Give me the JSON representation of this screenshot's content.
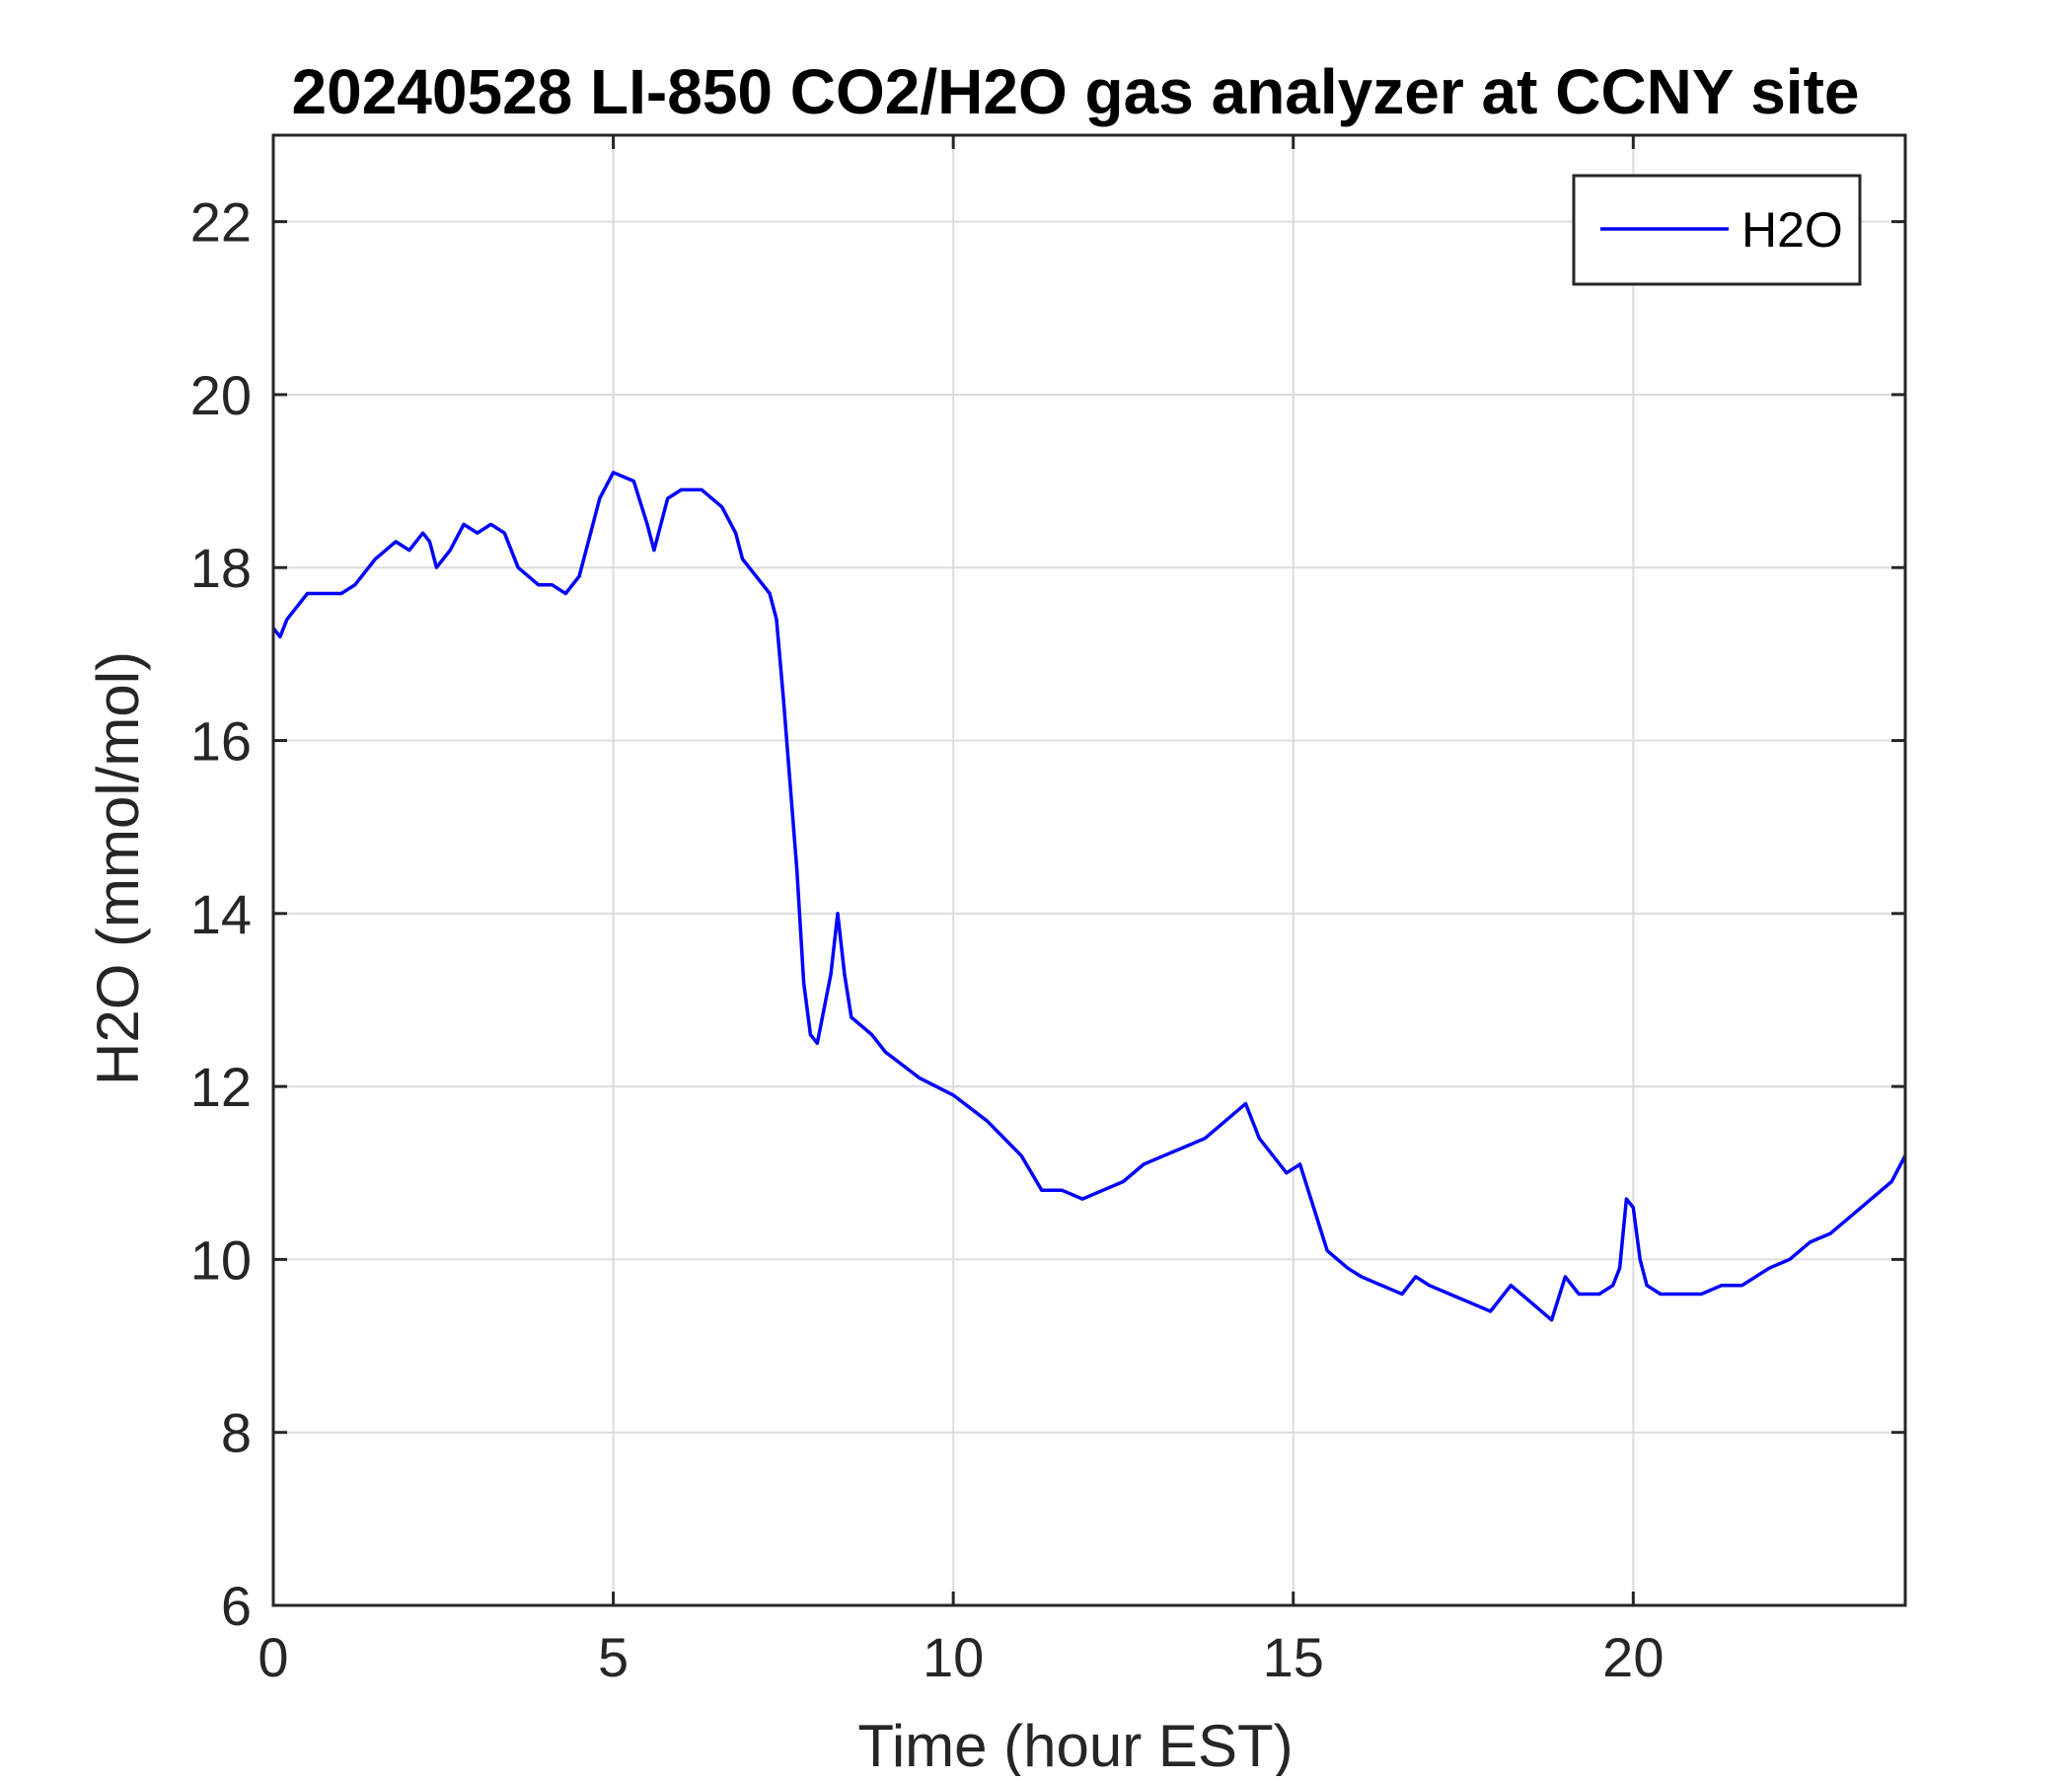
{
  "chart_data": {
    "type": "line",
    "title": "20240528 LI-850 CO2/H2O gas analyzer at CCNY site",
    "xlabel": "Time (hour EST)",
    "ylabel": "H2O (mmol/mol)",
    "xlim": [
      0,
      24
    ],
    "ylim": [
      6,
      23
    ],
    "xticks": [
      0,
      5,
      10,
      15,
      20
    ],
    "yticks": [
      6,
      8,
      10,
      12,
      14,
      16,
      18,
      20,
      22
    ],
    "grid": true,
    "legend_position": "top-right",
    "series": [
      {
        "name": "H2O",
        "color": "#0000ff",
        "x": [
          0,
          0.1,
          0.2,
          0.3,
          0.5,
          0.7,
          1.0,
          1.2,
          1.5,
          1.8,
          2.0,
          2.2,
          2.3,
          2.4,
          2.6,
          2.8,
          3.0,
          3.2,
          3.4,
          3.6,
          3.9,
          4.1,
          4.3,
          4.5,
          4.8,
          5.0,
          5.3,
          5.5,
          5.6,
          5.8,
          6.0,
          6.3,
          6.6,
          6.8,
          6.9,
          7.1,
          7.3,
          7.4,
          7.5,
          7.6,
          7.7,
          7.8,
          7.9,
          8.0,
          8.2,
          8.3,
          8.4,
          8.5,
          8.8,
          9.0,
          9.5,
          10.0,
          10.5,
          11.0,
          11.3,
          11.6,
          11.9,
          12.2,
          12.5,
          12.8,
          13.1,
          13.4,
          13.7,
          14.0,
          14.3,
          14.5,
          14.7,
          14.9,
          15.1,
          15.3,
          15.5,
          15.8,
          16.0,
          16.3,
          16.6,
          16.8,
          17.0,
          17.3,
          17.6,
          17.9,
          18.2,
          18.5,
          18.8,
          19.0,
          19.2,
          19.5,
          19.7,
          19.8,
          19.9,
          20.0,
          20.1,
          20.2,
          20.4,
          20.7,
          21.0,
          21.3,
          21.6,
          22.0,
          22.3,
          22.6,
          22.9,
          23.2,
          23.5,
          23.8,
          24.0
        ],
        "y": [
          17.3,
          17.2,
          17.4,
          17.5,
          17.7,
          17.7,
          17.7,
          17.8,
          18.1,
          18.3,
          18.2,
          18.4,
          18.3,
          18.0,
          18.2,
          18.5,
          18.4,
          18.5,
          18.4,
          18.0,
          17.8,
          17.8,
          17.7,
          17.9,
          18.8,
          19.1,
          19.0,
          18.5,
          18.2,
          18.8,
          18.9,
          18.9,
          18.7,
          18.4,
          18.1,
          17.9,
          17.7,
          17.4,
          16.5,
          15.5,
          14.5,
          13.2,
          12.6,
          12.5,
          13.3,
          14.0,
          13.3,
          12.8,
          12.6,
          12.4,
          12.1,
          11.9,
          11.6,
          11.2,
          10.8,
          10.8,
          10.7,
          10.8,
          10.9,
          11.1,
          11.2,
          11.3,
          11.4,
          11.6,
          11.8,
          11.4,
          11.2,
          11.0,
          11.1,
          10.6,
          10.1,
          9.9,
          9.8,
          9.7,
          9.6,
          9.8,
          9.7,
          9.6,
          9.5,
          9.4,
          9.7,
          9.5,
          9.3,
          9.8,
          9.6,
          9.6,
          9.7,
          9.9,
          10.7,
          10.6,
          10.0,
          9.7,
          9.6,
          9.6,
          9.6,
          9.7,
          9.7,
          9.9,
          10.0,
          10.2,
          10.3,
          10.5,
          10.7,
          10.9,
          11.2
        ]
      }
    ]
  }
}
